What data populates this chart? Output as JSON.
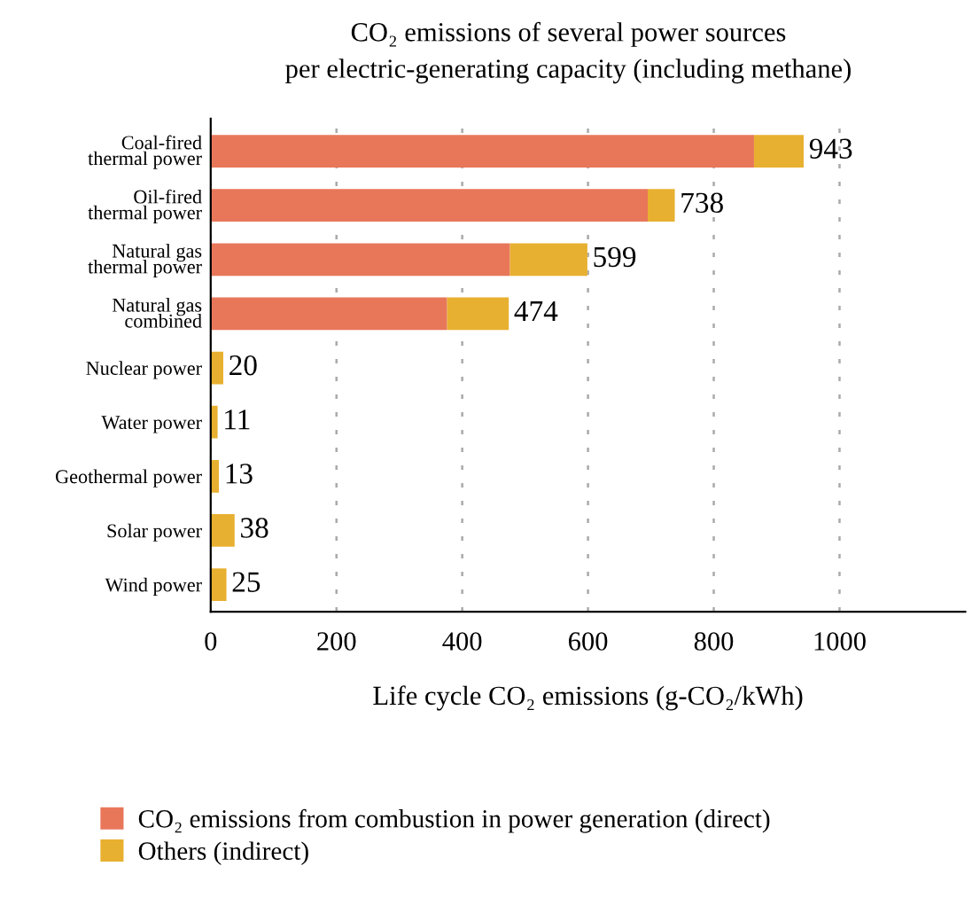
{
  "chart_data": {
    "type": "bar",
    "orientation": "horizontal",
    "stacked": true,
    "title": "CO₂ emissions of several power sources",
    "subtitle": "per electric-generating capacity (including methane)",
    "xlabel": "Life cycle CO₂ emissions (g-CO₂/kWh)",
    "categories": [
      "Coal-fired\nthermal power",
      "Oil-fired\nthermal power",
      "Natural gas\nthermal power",
      "Natural gas\ncombined",
      "Nuclear power",
      "Water power",
      "Geothermal power",
      "Solar power",
      "Wind power"
    ],
    "series": [
      {
        "name": "CO₂ emissions from combustion in power generation (direct)",
        "color": "#e8775a",
        "values": [
          864,
          695,
          476,
          376,
          0,
          0,
          0,
          0,
          0
        ]
      },
      {
        "name": "Others (indirect)",
        "color": "#e8b030",
        "values": [
          79,
          43,
          123,
          98,
          20,
          11,
          13,
          38,
          25
        ]
      }
    ],
    "totals": [
      "943",
      "738",
      "599",
      "474",
      "20",
      "11",
      "13",
      "38",
      "25"
    ],
    "xlim": [
      0,
      1200
    ],
    "xticks": [
      0,
      200,
      400,
      600,
      800,
      1000
    ],
    "grid": "x",
    "legend": "bottom"
  }
}
